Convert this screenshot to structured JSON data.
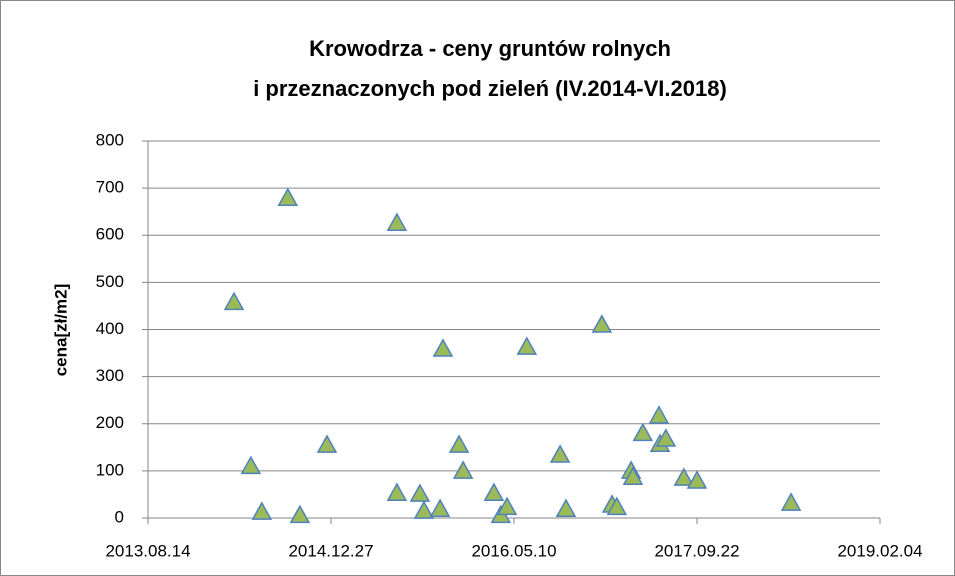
{
  "chart_data": {
    "type": "scatter",
    "title": [
      "Krowodrza - ceny gruntów  rolnych",
      "i przeznaczonych pod zieleń (IV.2014-VI.2018)"
    ],
    "y_label": "cena[zł/m2]",
    "x": [
      "2014.04.06",
      "2014.05.22",
      "2014.06.21",
      "2014.08.31",
      "2014.10.03",
      "2014.12.16",
      "2015.06.25",
      "2015.06.25",
      "2015.08.27",
      "2015.09.07",
      "2015.10.21",
      "2015.10.29",
      "2015.12.12",
      "2015.12.23",
      "2016.03.16",
      "2016.04.04",
      "2016.04.21",
      "2016.06.14",
      "2016.09.13",
      "2016.09.29",
      "2017.01.05",
      "2017.02.02",
      "2017.02.15",
      "2017.03.26",
      "2017.03.31",
      "2017.04.27",
      "2017.06.10",
      "2017.06.13",
      "2017.06.29",
      "2017.08.17",
      "2017.09.22",
      "2018.06.06"
    ],
    "values": [
      458,
      110,
      13,
      679,
      6,
      155,
      626,
      53,
      51,
      15,
      19,
      359,
      155,
      100,
      53,
      6,
      23,
      363,
      134,
      19,
      410,
      28,
      23,
      100,
      87,
      180,
      217,
      157,
      168,
      85,
      79,
      32
    ],
    "color": "#9bbb59",
    "edge_color": "#4f81bd",
    "xlim": [
      "2013.08.14",
      "2019.02.04"
    ],
    "xticks": [
      "2013.08.14",
      "2014.12.27",
      "2016.05.10",
      "2017.09.22",
      "2019.02.04"
    ],
    "ylim": [
      0,
      800
    ],
    "yticks": [
      0,
      100,
      200,
      300,
      400,
      500,
      600,
      700,
      800
    ],
    "grid": true
  }
}
